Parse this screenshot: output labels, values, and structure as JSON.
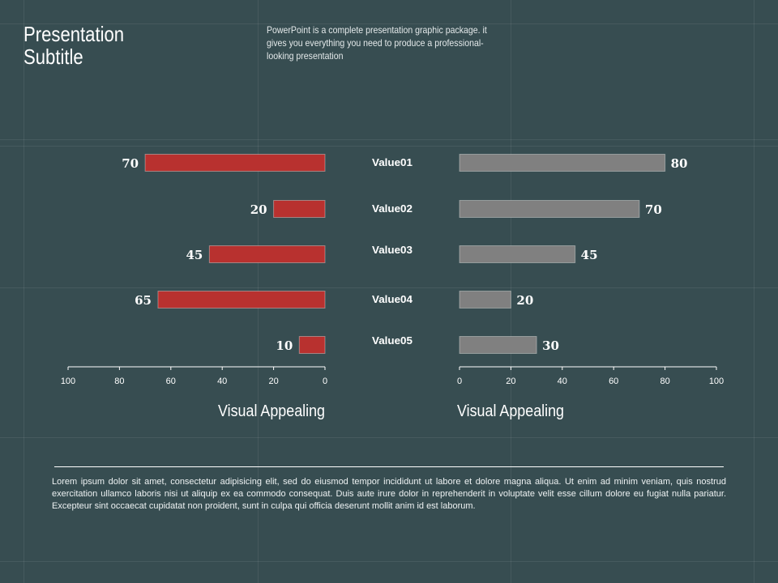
{
  "header": {
    "title": "Presentation\nSubtitle",
    "description": "PowerPoint is a complete presentation graphic package. it gives you everything you need to produce a professional-looking presentation"
  },
  "chart_data": [
    {
      "type": "bar",
      "orientation": "horizontal",
      "direction": "right-to-left",
      "categories": [
        "Value01",
        "Value02",
        "Value03",
        "Value04",
        "Value05"
      ],
      "values": [
        70,
        20,
        45,
        65,
        10
      ],
      "xlabel": "Visual Appealing",
      "xlim": [
        0,
        100
      ],
      "ticks": [
        100,
        80,
        60,
        40,
        20,
        0
      ],
      "color": "#b8312f",
      "grid": false
    },
    {
      "type": "bar",
      "orientation": "horizontal",
      "direction": "left-to-right",
      "categories": [
        "Value01",
        "Value02",
        "Value03",
        "Value04",
        "Value05"
      ],
      "values": [
        80,
        70,
        45,
        20,
        30
      ],
      "xlabel": "Visual Appealing",
      "xlim": [
        0,
        100
      ],
      "ticks": [
        0,
        20,
        40,
        60,
        80,
        100
      ],
      "color": "#808080",
      "grid": false
    }
  ],
  "footer": {
    "text": "Lorem ipsum dolor sit amet, consectetur adipisicing elit, sed do eiusmod tempor incididunt ut labore et dolore magna aliqua. Ut enim ad minim veniam, quis nostrud exercitation ullamco laboris nisi ut aliquip ex ea commodo consequat. Duis aute irure dolor in reprehenderit in voluptate velit esse cillum dolore eu fugiat nulla pariatur. Excepteur sint occaecat cupidatat non proident, sunt in culpa qui officia deserunt mollit anim id est laborum."
  }
}
